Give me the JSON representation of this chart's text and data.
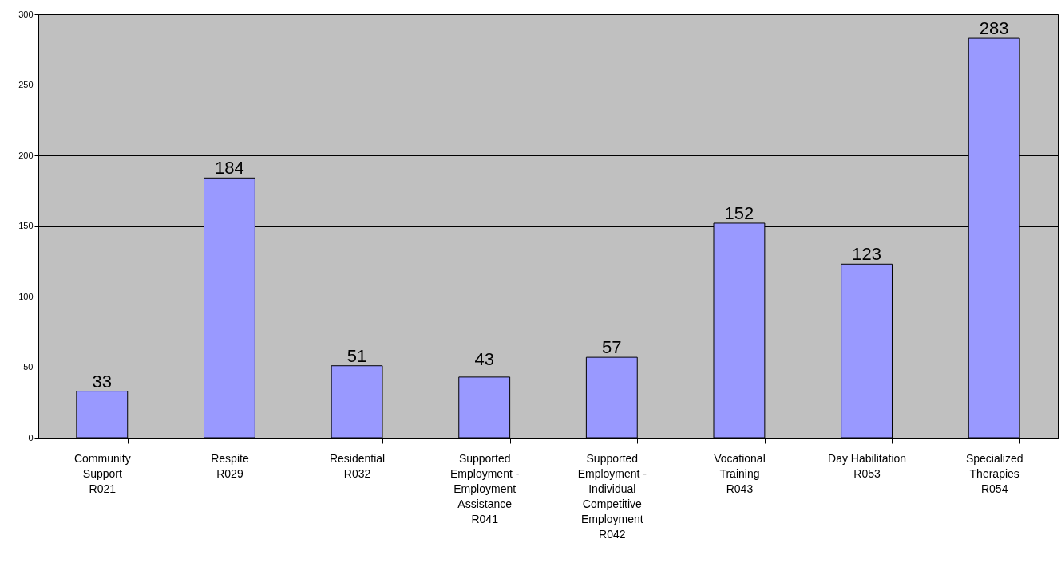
{
  "chart_data": {
    "type": "bar",
    "categories": [
      "Community\nSupport\nR021",
      "Respite\nR029",
      "Residential\nR032",
      "Supported\nEmployment -\nEmployment\nAssistance\nR041",
      "Supported\nEmployment -\nIndividual\nCompetitive\nEmployment\nR042",
      "Vocational\nTraining\nR043",
      "Day Habilitation\nR053",
      "Specialized\nTherapies\nR054"
    ],
    "values": [
      33,
      184,
      51,
      43,
      57,
      152,
      123,
      283
    ],
    "color": "#9999ff",
    "ylim": [
      0,
      300
    ],
    "yticks": [
      0,
      50,
      100,
      150,
      200,
      250,
      300
    ],
    "grid": "y",
    "data_labels": true
  }
}
